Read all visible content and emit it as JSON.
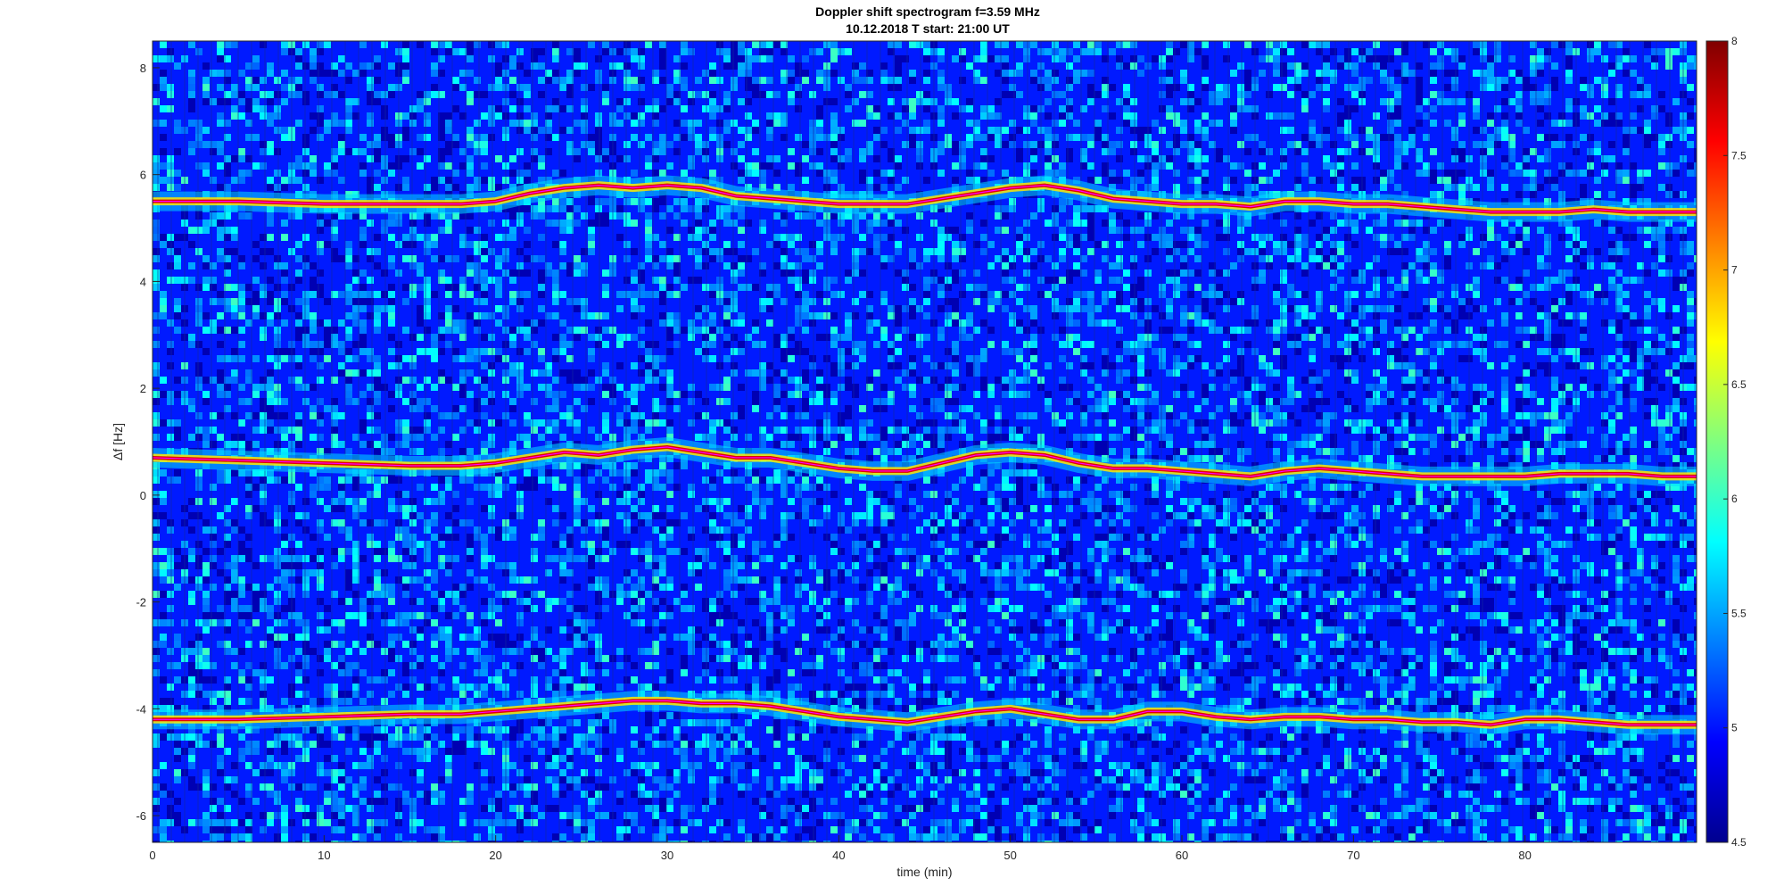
{
  "chart_data": {
    "type": "heatmap",
    "title": "Doppler shift spectrogram f=3.59 MHz",
    "subtitle": "10.12.2018    T start: 21:00 UT",
    "xlabel": "time (min)",
    "ylabel": "Δf [Hz]",
    "xlim": [
      0,
      90
    ],
    "ylim": [
      -6.5,
      8.5
    ],
    "x_ticks": [
      0,
      10,
      20,
      30,
      40,
      50,
      60,
      70,
      80
    ],
    "y_ticks": [
      -6,
      -4,
      -2,
      0,
      2,
      4,
      6,
      8
    ],
    "x_tick_labels": [
      "0",
      "10",
      "20",
      "30",
      "40",
      "50",
      "60",
      "70",
      "80"
    ],
    "y_tick_labels": [
      "-6",
      "-4",
      "-2",
      "0",
      "2",
      "4",
      "6",
      "8"
    ],
    "colormap": "jet",
    "colorbar": {
      "range": [
        4.5,
        8
      ],
      "ticks": [
        4.5,
        5,
        5.5,
        6,
        6.5,
        7,
        7.5,
        8
      ],
      "tick_labels": [
        "4.5",
        "5",
        "5.5",
        "6",
        "6.5",
        "7",
        "7.5",
        "8"
      ],
      "position": "right"
    },
    "grid": false,
    "series": [
      {
        "role": "upper trace",
        "color": "#ff00ff",
        "x": [
          0,
          5,
          10,
          15,
          18,
          20,
          22,
          24,
          26,
          28,
          30,
          32,
          34,
          36,
          38,
          40,
          42,
          44,
          46,
          48,
          50,
          52,
          54,
          56,
          58,
          60,
          62,
          64,
          66,
          68,
          70,
          72,
          74,
          76,
          78,
          80,
          82,
          84,
          86,
          88,
          90
        ],
        "y": [
          5.5,
          5.5,
          5.45,
          5.45,
          5.45,
          5.5,
          5.65,
          5.75,
          5.8,
          5.75,
          5.8,
          5.75,
          5.6,
          5.55,
          5.5,
          5.45,
          5.45,
          5.45,
          5.55,
          5.65,
          5.75,
          5.8,
          5.7,
          5.55,
          5.5,
          5.45,
          5.45,
          5.4,
          5.5,
          5.5,
          5.45,
          5.45,
          5.4,
          5.35,
          5.3,
          5.3,
          5.3,
          5.35,
          5.3,
          5.3,
          5.3
        ]
      },
      {
        "role": "middle trace",
        "color": "#ff00ff",
        "x": [
          0,
          5,
          10,
          15,
          18,
          20,
          22,
          24,
          26,
          28,
          30,
          32,
          34,
          36,
          38,
          40,
          42,
          44,
          46,
          48,
          50,
          52,
          54,
          56,
          58,
          60,
          62,
          64,
          66,
          68,
          70,
          72,
          74,
          76,
          78,
          80,
          82,
          84,
          86,
          88,
          90
        ],
        "y": [
          0.7,
          0.65,
          0.6,
          0.55,
          0.55,
          0.6,
          0.7,
          0.8,
          0.75,
          0.85,
          0.9,
          0.8,
          0.7,
          0.7,
          0.6,
          0.5,
          0.45,
          0.45,
          0.6,
          0.75,
          0.8,
          0.75,
          0.6,
          0.5,
          0.5,
          0.45,
          0.4,
          0.35,
          0.45,
          0.5,
          0.45,
          0.4,
          0.35,
          0.35,
          0.35,
          0.35,
          0.4,
          0.4,
          0.4,
          0.35,
          0.35
        ]
      },
      {
        "role": "lower trace",
        "color": "#ff00ff",
        "x": [
          0,
          5,
          10,
          15,
          18,
          20,
          22,
          24,
          26,
          28,
          30,
          32,
          34,
          36,
          38,
          40,
          42,
          44,
          46,
          48,
          50,
          52,
          54,
          56,
          58,
          60,
          62,
          64,
          66,
          68,
          70,
          72,
          74,
          76,
          78,
          80,
          82,
          84,
          86,
          88,
          90
        ],
        "y": [
          -4.2,
          -4.2,
          -4.15,
          -4.1,
          -4.1,
          -4.05,
          -4.0,
          -3.95,
          -3.9,
          -3.85,
          -3.85,
          -3.9,
          -3.9,
          -3.95,
          -4.05,
          -4.15,
          -4.2,
          -4.25,
          -4.15,
          -4.05,
          -4.0,
          -4.1,
          -4.2,
          -4.2,
          -4.05,
          -4.05,
          -4.15,
          -4.2,
          -4.15,
          -4.15,
          -4.2,
          -4.2,
          -4.25,
          -4.25,
          -4.3,
          -4.2,
          -4.2,
          -4.25,
          -4.3,
          -4.3,
          -4.3
        ]
      }
    ]
  }
}
